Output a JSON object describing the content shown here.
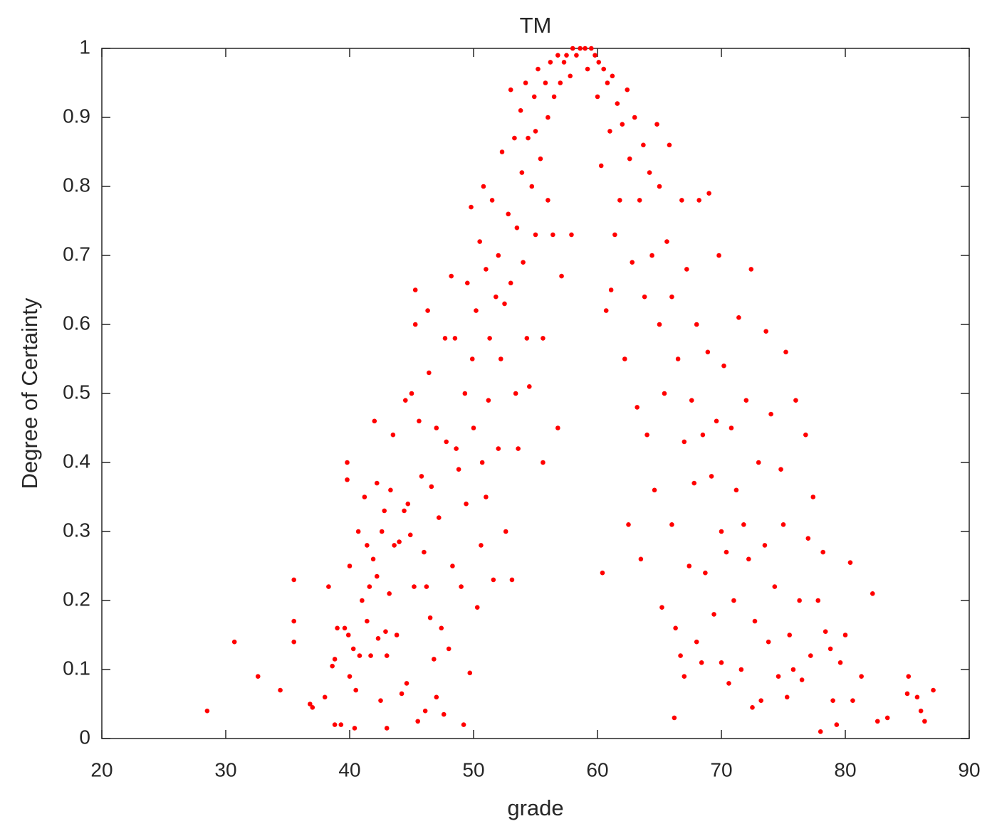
{
  "chart_data": {
    "type": "scatter",
    "title": "TM",
    "x_label": "grade",
    "y_label": "Degree of Certainty",
    "color": "#ff0000",
    "xlim": [
      20,
      90
    ],
    "xticks": [
      20,
      30,
      40,
      50,
      60,
      70,
      80,
      90
    ],
    "ylim": [
      0,
      1
    ],
    "yticks": [
      0,
      0.1,
      0.2,
      0.3,
      0.4,
      0.5,
      0.6,
      0.7,
      0.8,
      0.9,
      1
    ],
    "x": [
      28.5,
      30.7,
      32.6,
      34.4,
      35.5,
      35.5,
      35.5,
      36.8,
      37,
      38,
      38.3,
      38.6,
      38.8,
      38.8,
      39,
      39.3,
      39.6,
      39.8,
      39.8,
      39.9,
      40,
      40,
      40.3,
      40.4,
      40.5,
      40.7,
      40.8,
      41,
      41.2,
      41.4,
      41.4,
      41.6,
      41.7,
      41.9,
      42,
      42.2,
      42.2,
      42.3,
      42.5,
      42.6,
      42.8,
      42.9,
      43,
      43,
      43.2,
      43.3,
      43.5,
      43.6,
      43.8,
      44,
      44.2,
      44.4,
      44.5,
      44.6,
      44.7,
      44.9,
      45,
      45.2,
      45.3,
      45.3,
      45.5,
      45.6,
      45.8,
      46,
      46.1,
      46.2,
      46.3,
      46.4,
      46.5,
      46.6,
      46.8,
      47,
      47,
      47.2,
      47.4,
      47.6,
      47.7,
      47.8,
      48,
      48.2,
      48.3,
      48.5,
      48.6,
      48.8,
      49,
      49.2,
      49.3,
      49.4,
      49.5,
      49.7,
      49.8,
      49.9,
      50,
      50.2,
      50.3,
      50.5,
      50.6,
      50.7,
      50.8,
      51,
      51,
      51.2,
      51.3,
      51.5,
      51.6,
      51.8,
      52,
      52,
      52.2,
      52.3,
      52.5,
      52.6,
      52.8,
      53,
      53,
      53.1,
      53.3,
      53.4,
      53.5,
      53.6,
      53.8,
      53.9,
      54,
      54.2,
      54.3,
      54.4,
      54.5,
      54.7,
      54.9,
      55,
      55,
      55.2,
      55.4,
      55.6,
      55.6,
      55.8,
      56,
      56,
      56.2,
      56.4,
      56.5,
      56.8,
      56.8,
      57,
      57.1,
      57.3,
      57.5,
      57.8,
      57.9,
      58,
      58.3,
      58.6,
      59,
      59.2,
      59.5,
      59.8,
      60,
      60.1,
      60.3,
      60.4,
      60.5,
      60.7,
      60.8,
      61,
      61.1,
      61.2,
      61.4,
      61.6,
      61.8,
      62,
      62.2,
      62.4,
      62.5,
      62.6,
      62.8,
      63,
      63.2,
      63.4,
      63.5,
      63.7,
      63.8,
      64,
      64.2,
      64.4,
      64.6,
      64.8,
      65,
      65,
      65.2,
      65.4,
      65.6,
      65.8,
      66,
      66,
      66.2,
      66.3,
      66.5,
      66.7,
      66.8,
      67,
      67,
      67.2,
      67.4,
      67.6,
      67.8,
      68,
      68,
      68.2,
      68.4,
      68.5,
      68.7,
      68.9,
      69,
      69.2,
      69.4,
      69.6,
      69.8,
      70,
      70,
      70.2,
      70.4,
      70.6,
      70.8,
      71,
      71.2,
      71.4,
      71.6,
      71.8,
      72,
      72.2,
      72.4,
      72.5,
      72.7,
      73,
      73.2,
      73.5,
      73.6,
      73.8,
      74,
      74.3,
      74.6,
      74.8,
      75,
      75.2,
      75.3,
      75.5,
      75.8,
      76,
      76.3,
      76.5,
      76.8,
      77,
      77.2,
      77.4,
      77.8,
      78,
      78.2,
      78.4,
      78.8,
      79,
      79.3,
      79.6,
      80,
      80.4,
      80.6,
      81.3,
      82.2,
      82.6,
      83.4,
      85,
      85.1,
      85.8,
      86.1,
      86.4,
      87.1
    ],
    "values": [
      0.04,
      0.14,
      0.09,
      0.07,
      0.23,
      0.17,
      0.14,
      0.05,
      0.045,
      0.06,
      0.22,
      0.105,
      0.115,
      0.02,
      0.16,
      0.02,
      0.16,
      0.4,
      0.375,
      0.15,
      0.25,
      0.09,
      0.13,
      0.015,
      0.07,
      0.3,
      0.12,
      0.2,
      0.35,
      0.28,
      0.17,
      0.22,
      0.12,
      0.26,
      0.46,
      0.37,
      0.235,
      0.145,
      0.055,
      0.3,
      0.33,
      0.155,
      0.015,
      0.12,
      0.21,
      0.36,
      0.44,
      0.28,
      0.15,
      0.285,
      0.065,
      0.33,
      0.49,
      0.08,
      0.34,
      0.295,
      0.5,
      0.22,
      0.65,
      0.6,
      0.025,
      0.46,
      0.38,
      0.27,
      0.04,
      0.22,
      0.62,
      0.53,
      0.175,
      0.365,
      0.115,
      0.45,
      0.06,
      0.32,
      0.16,
      0.035,
      0.58,
      0.43,
      0.13,
      0.67,
      0.25,
      0.58,
      0.42,
      0.39,
      0.22,
      0.02,
      0.5,
      0.34,
      0.66,
      0.095,
      0.77,
      0.55,
      0.45,
      0.62,
      0.19,
      0.72,
      0.28,
      0.4,
      0.8,
      0.68,
      0.35,
      0.49,
      0.58,
      0.78,
      0.23,
      0.64,
      0.7,
      0.42,
      0.55,
      0.85,
      0.63,
      0.3,
      0.76,
      0.94,
      0.66,
      0.23,
      0.87,
      0.5,
      0.74,
      0.42,
      0.91,
      0.82,
      0.69,
      0.95,
      0.58,
      0.87,
      0.51,
      0.8,
      0.93,
      0.73,
      0.88,
      0.97,
      0.84,
      0.4,
      0.58,
      0.95,
      0.9,
      0.78,
      0.98,
      0.73,
      0.93,
      0.45,
      0.99,
      0.95,
      0.67,
      0.98,
      0.99,
      0.96,
      0.73,
      1.0,
      0.99,
      1.0,
      1.0,
      0.97,
      1.0,
      0.99,
      0.93,
      0.98,
      0.83,
      0.24,
      0.97,
      0.62,
      0.95,
      0.88,
      0.65,
      0.96,
      0.73,
      0.92,
      0.78,
      0.89,
      0.55,
      0.94,
      0.31,
      0.84,
      0.69,
      0.9,
      0.48,
      0.78,
      0.26,
      0.86,
      0.64,
      0.44,
      0.82,
      0.7,
      0.36,
      0.89,
      0.6,
      0.8,
      0.19,
      0.5,
      0.72,
      0.86,
      0.31,
      0.64,
      0.03,
      0.16,
      0.55,
      0.12,
      0.78,
      0.43,
      0.09,
      0.68,
      0.25,
      0.49,
      0.37,
      0.6,
      0.14,
      0.78,
      0.11,
      0.44,
      0.24,
      0.56,
      0.79,
      0.38,
      0.18,
      0.46,
      0.7,
      0.3,
      0.11,
      0.54,
      0.27,
      0.08,
      0.45,
      0.2,
      0.36,
      0.61,
      0.1,
      0.31,
      0.49,
      0.26,
      0.68,
      0.045,
      0.17,
      0.4,
      0.055,
      0.28,
      0.59,
      0.14,
      0.47,
      0.22,
      0.09,
      0.39,
      0.31,
      0.56,
      0.06,
      0.15,
      0.1,
      0.49,
      0.2,
      0.085,
      0.44,
      0.29,
      0.12,
      0.35,
      0.2,
      0.01,
      0.27,
      0.155,
      0.13,
      0.055,
      0.02,
      0.11,
      0.15,
      0.255,
      0.055,
      0.09,
      0.21,
      0.025,
      0.03,
      0.065,
      0.09,
      0.06,
      0.04,
      0.025,
      0.07
    ]
  }
}
